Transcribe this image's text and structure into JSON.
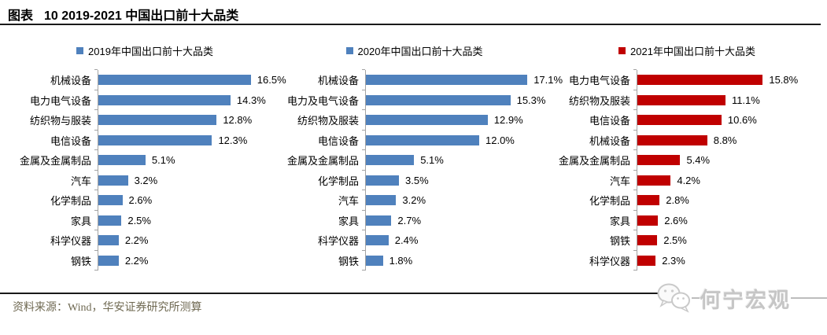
{
  "header": {
    "prefix": "图表",
    "number_title": "10 2019-2021 中国出口前十大品类"
  },
  "footer": {
    "source": "资料来源：Wind，华安证券研究所测算",
    "watermark": "何宁宏观",
    "watermark_icon": "wechat-icon"
  },
  "colors": {
    "bar_2019": "#4F81BD",
    "bar_2020": "#4F81BD",
    "bar_2021": "#C00000",
    "axis": "#a3a3a3",
    "rule": "#1a1a1a",
    "source_text": "#6f6952",
    "watermark": "#c6c6c6"
  },
  "chart_data": [
    {
      "type": "bar",
      "orientation": "horizontal",
      "legend": "2019年中国出口前十大品类",
      "legend_position": "top",
      "color": "#4F81BD",
      "grid": false,
      "value_suffix": "%",
      "xlim": [
        0,
        19.5
      ],
      "categories": [
        "机械设备",
        "电力电气设备",
        "纺织物与服装",
        "电信设备",
        "金属及金属制品",
        "汽车",
        "化学制品",
        "家具",
        "科学仪器",
        "钢铁"
      ],
      "values": [
        16.5,
        14.3,
        12.8,
        12.3,
        5.1,
        3.2,
        2.6,
        2.5,
        2.2,
        2.2
      ]
    },
    {
      "type": "bar",
      "orientation": "horizontal",
      "legend": "2020年中国出口前十大品类",
      "legend_position": "top",
      "color": "#4F81BD",
      "grid": false,
      "value_suffix": "%",
      "xlim": [
        0,
        19.5
      ],
      "categories": [
        "机械设备",
        "电力及电气设备",
        "纺织物及服装",
        "电信设备",
        "金属及金属制品",
        "化学制品",
        "汽车",
        "家具",
        "科学仪器",
        "钢铁"
      ],
      "values": [
        17.1,
        15.3,
        12.9,
        12.0,
        5.1,
        3.5,
        3.2,
        2.7,
        2.4,
        1.8
      ]
    },
    {
      "type": "bar",
      "orientation": "horizontal",
      "legend": "2021年中国出口前十大品类",
      "legend_position": "top",
      "color": "#C00000",
      "grid": false,
      "value_suffix": "%",
      "xlim": [
        0,
        23.5
      ],
      "categories": [
        "电力电气设备",
        "纺织物及服装",
        "电信设备",
        "机械设备",
        "金属及金属制品",
        "汽车",
        "化学制品",
        "家具",
        "钢铁",
        "科学仪器"
      ],
      "values": [
        15.8,
        11.1,
        10.6,
        8.8,
        5.4,
        4.2,
        2.8,
        2.6,
        2.5,
        2.3
      ]
    }
  ]
}
